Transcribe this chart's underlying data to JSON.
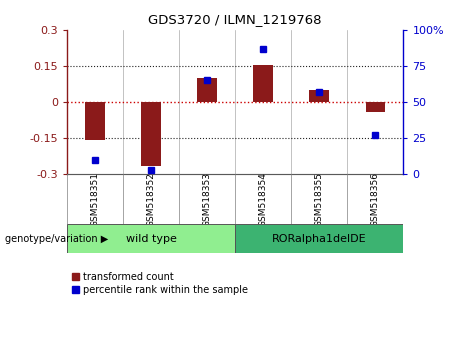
{
  "title": "GDS3720 / ILMN_1219768",
  "samples": [
    "GSM518351",
    "GSM518352",
    "GSM518353",
    "GSM518354",
    "GSM518355",
    "GSM518356"
  ],
  "red_bars": [
    -0.16,
    -0.265,
    0.1,
    0.155,
    0.05,
    -0.04
  ],
  "blue_dots": [
    10,
    3,
    65,
    87,
    57,
    27
  ],
  "ylim_left": [
    -0.3,
    0.3
  ],
  "ylim_right": [
    0,
    100
  ],
  "yticks_left": [
    -0.3,
    -0.15,
    0,
    0.15,
    0.3
  ],
  "yticks_right": [
    0,
    25,
    50,
    75,
    100
  ],
  "bar_color": "#8B1A1A",
  "dot_color": "#0000CD",
  "zero_line_color": "#CC0000",
  "dotted_line_color": "#222222",
  "group1_label": "wild type",
  "group2_label": "RORalpha1delDE",
  "group1_indices": [
    0,
    1,
    2
  ],
  "group2_indices": [
    3,
    4,
    5
  ],
  "group1_color": "#90EE90",
  "group2_color": "#3CB371",
  "genotype_label": "genotype/variation",
  "legend_entries": [
    "transformed count",
    "percentile rank within the sample"
  ],
  "bar_width": 0.35
}
